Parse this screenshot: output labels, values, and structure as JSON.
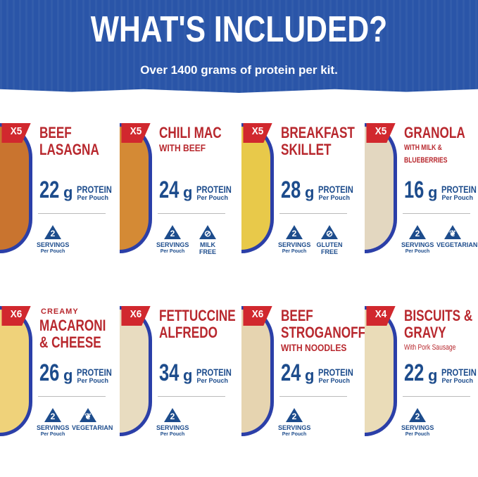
{
  "header": {
    "title": "WHAT'S INCLUDED?",
    "subtitle": "Over 1400 grams of protein per kit."
  },
  "colors": {
    "brand_blue": "#2a55a8",
    "red": "#b8282e",
    "navy": "#1d4c8c"
  },
  "cards": [
    {
      "qty": "X5",
      "title": [
        "BEEF",
        "LASAGNA"
      ],
      "pre": "",
      "sub": "",
      "protein": "22",
      "food": "#c9742f",
      "icons": [
        {
          "icon": "servings-icon",
          "glyph": "2",
          "label": "SERVINGS",
          "small": "Per Pouch"
        }
      ]
    },
    {
      "qty": "X5",
      "title": [
        "CHILI MAC"
      ],
      "pre": "",
      "sub": "WITH BEEF",
      "protein": "24",
      "food": "#d48a35",
      "icons": [
        {
          "icon": "servings-icon",
          "glyph": "2",
          "label": "SERVINGS",
          "small": "Per Pouch"
        },
        {
          "icon": "milk-free-icon",
          "glyph": "⊘",
          "label": "MILK",
          "small": "FREE"
        }
      ]
    },
    {
      "qty": "X5",
      "title": [
        "BREAKFAST",
        "SKILLET"
      ],
      "pre": "",
      "sub": "",
      "protein": "28",
      "food": "#e8c94a",
      "icons": [
        {
          "icon": "servings-icon",
          "glyph": "2",
          "label": "SERVINGS",
          "small": "Per Pouch"
        },
        {
          "icon": "gluten-free-icon",
          "glyph": "⊘",
          "label": "GLUTEN",
          "small": "FREE"
        }
      ]
    },
    {
      "qty": "X5",
      "title": [
        "GRANOLA"
      ],
      "pre": "",
      "sub": "WITH MILK & BLUEBERRIES",
      "protein": "16",
      "food": "#e3d7c0",
      "icons": [
        {
          "icon": "servings-icon",
          "glyph": "2",
          "label": "SERVINGS",
          "small": "Per Pouch"
        },
        {
          "icon": "vegetarian-icon",
          "glyph": "❦",
          "label": "VEGETARIAN",
          "small": ""
        }
      ]
    },
    {
      "qty": "X6",
      "title": [
        "MACARONI",
        "& CHEESE"
      ],
      "pre": "CREAMY",
      "sub": "",
      "protein": "26",
      "food": "#efd27a",
      "icons": [
        {
          "icon": "servings-icon",
          "glyph": "2",
          "label": "SERVINGS",
          "small": "Per Pouch"
        },
        {
          "icon": "vegetarian-icon",
          "glyph": "❦",
          "label": "VEGETARIAN",
          "small": ""
        }
      ]
    },
    {
      "qty": "X6",
      "title": [
        "FETTUCCINE",
        "ALFREDO"
      ],
      "pre": "",
      "sub": "",
      "protein": "34",
      "food": "#e8dcc0",
      "icons": [
        {
          "icon": "servings-icon",
          "glyph": "2",
          "label": "SERVINGS",
          "small": "Per Pouch"
        }
      ]
    },
    {
      "qty": "X6",
      "title": [
        "BEEF",
        "STROGANOFF"
      ],
      "pre": "",
      "sub": "WITH NOODLES",
      "protein": "24",
      "food": "#e6d4b0",
      "icons": [
        {
          "icon": "servings-icon",
          "glyph": "2",
          "label": "SERVINGS",
          "small": "Per Pouch"
        }
      ]
    },
    {
      "qty": "X4",
      "title": [
        "BISCUITS &",
        "GRAVY"
      ],
      "pre": "",
      "sub": "With Pork Sausage",
      "protein": "22",
      "food": "#eadcb8",
      "icons": [
        {
          "icon": "servings-icon",
          "glyph": "2",
          "label": "SERVINGS",
          "small": "Per Pouch"
        }
      ]
    }
  ],
  "labels": {
    "unit": "g",
    "protein": "PROTEIN",
    "per_pouch": "Per Pouch"
  }
}
